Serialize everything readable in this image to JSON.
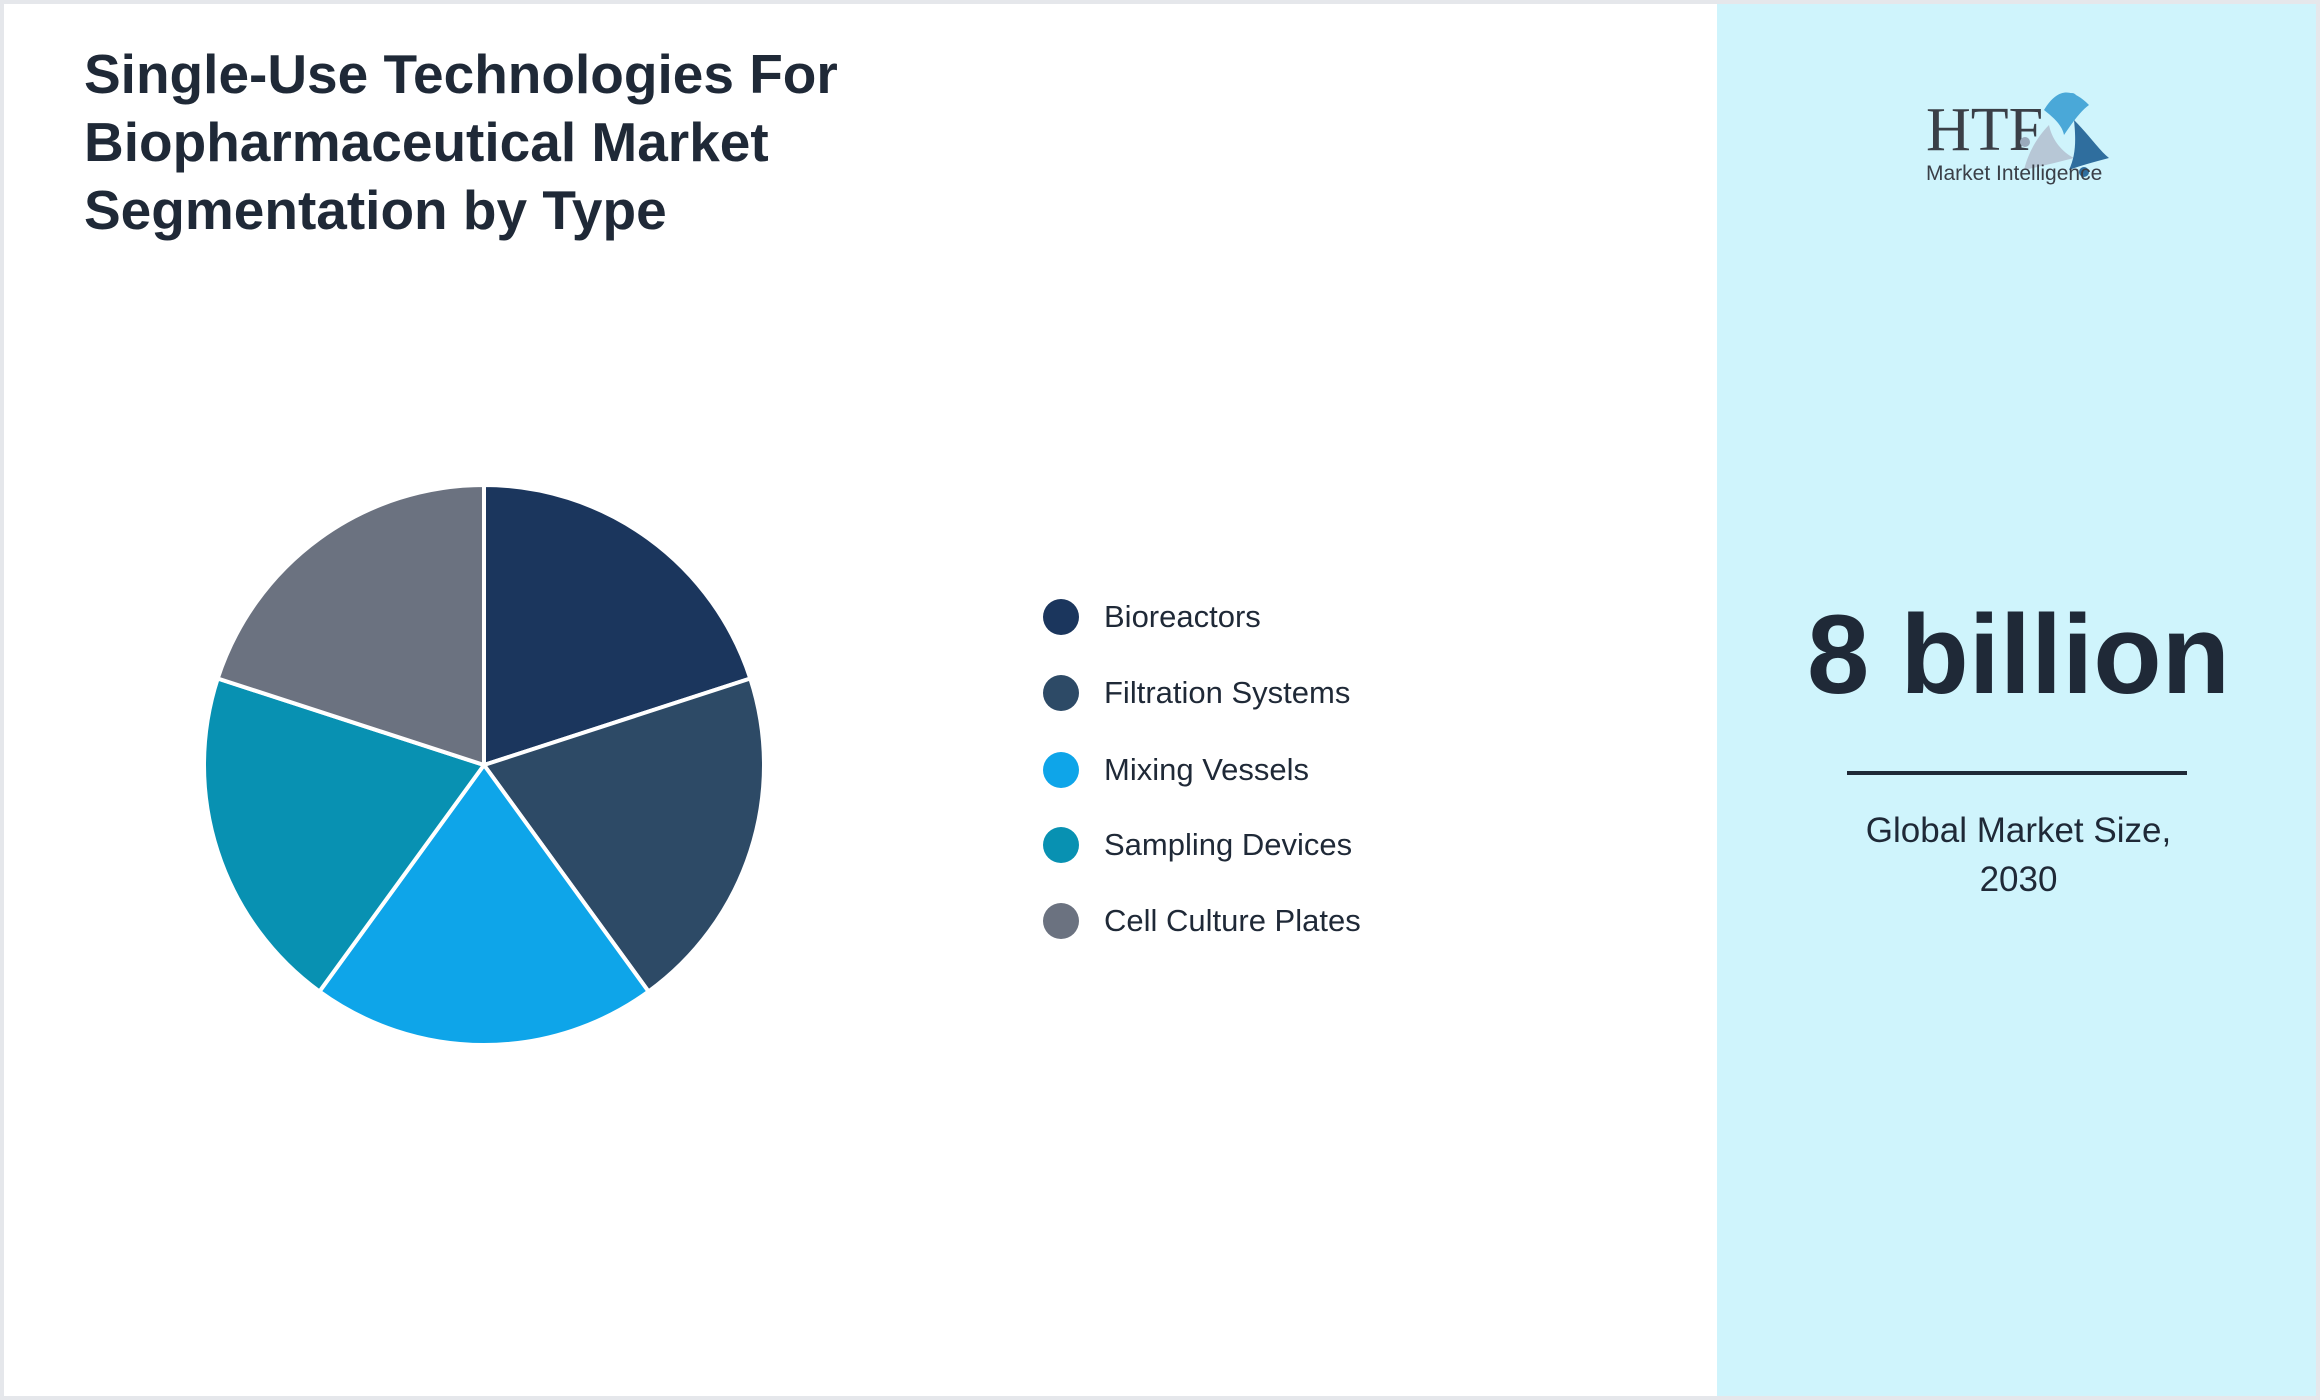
{
  "chart_data": {
    "type": "pie",
    "title": "Single-Use Technologies For Biopharmaceutical Market Segmentation by Type",
    "categories": [
      "Bioreactors",
      "Filtration Systems",
      "Mixing Vessels",
      "Sampling Devices",
      "Cell Culture Plates"
    ],
    "values": [
      20,
      20,
      20,
      20,
      20
    ],
    "colors": [
      "#1b365d",
      "#2d4a66",
      "#0ea5e9",
      "#0891b2",
      "#6b7280"
    ],
    "legend_position": "right"
  },
  "side": {
    "logo_text": "HTF Market Intelligence",
    "value": "8 billion",
    "caption_line1": "Global Market Size,",
    "caption_line2": "2030"
  }
}
